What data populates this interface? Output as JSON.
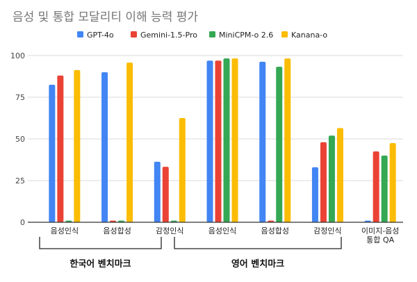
{
  "chart_data": {
    "type": "bar",
    "title": "음성 및 통합 모달리티 이해 능력 평가",
    "categories": [
      "음성인식",
      "음성합성",
      "감정인식",
      "음성인식",
      "음성합성",
      "감정인식",
      "이미지-음성 통합 QA"
    ],
    "category_lines": [
      [
        "음성인식"
      ],
      [
        "음성합성"
      ],
      [
        "감정인식"
      ],
      [
        "음성인식"
      ],
      [
        "음성합성"
      ],
      [
        "감정인식"
      ],
      [
        "이미지-음성",
        "통합 QA"
      ]
    ],
    "groups": [
      {
        "label": "한국어 벤치마크",
        "categories": [
          0,
          1,
          2
        ]
      },
      {
        "label": "영어 벤치마크",
        "categories": [
          3,
          4,
          5,
          6
        ]
      }
    ],
    "series": [
      {
        "name": "GPT-4o",
        "color": "#4285F4",
        "values": [
          82.5,
          90,
          36.3,
          97,
          96.3,
          33,
          1
        ]
      },
      {
        "name": "Gemini-1.5-Pro",
        "color": "#EA4335",
        "values": [
          88,
          1,
          33.3,
          97,
          1,
          48,
          42.5
        ]
      },
      {
        "name": "MiniCPM-o 2.6",
        "color": "#34A853",
        "values": [
          1,
          1,
          1,
          98.3,
          93.3,
          52,
          40
        ]
      },
      {
        "name": "Kanana-o",
        "color": "#FBBC04",
        "values": [
          91.3,
          95.8,
          62.5,
          98.3,
          98.3,
          56.5,
          47.5
        ]
      }
    ],
    "ylim": [
      0,
      100
    ],
    "yticks": [
      "0",
      "25",
      "50",
      "75",
      "100"
    ],
    "grid": true,
    "legend": "top-center"
  }
}
